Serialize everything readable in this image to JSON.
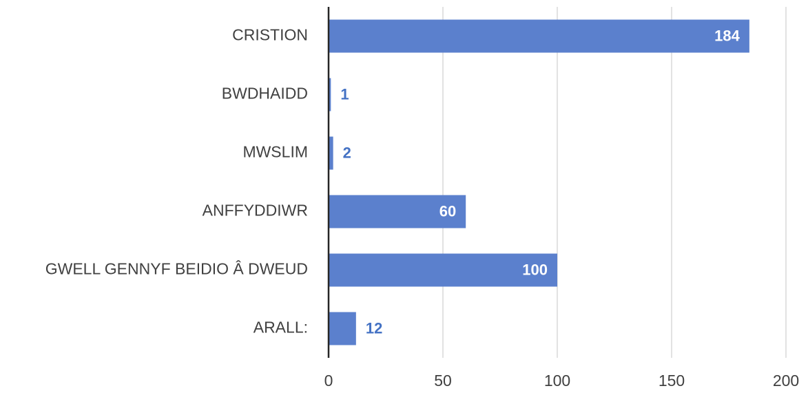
{
  "chart_data": {
    "type": "bar",
    "orientation": "horizontal",
    "categories": [
      "CRISTION",
      "BWDHAIDD",
      "MWSLIM",
      "ANFFYDDIWR",
      "GWELL GENNYF BEIDIO Â DWEUD",
      "ARALL:"
    ],
    "values": [
      184,
      1,
      2,
      60,
      100,
      12
    ],
    "color": "#5b80cd",
    "xlim": [
      0,
      200
    ],
    "xticks": [
      0,
      50,
      100,
      150,
      200
    ],
    "grid": true,
    "data_labels": true
  }
}
